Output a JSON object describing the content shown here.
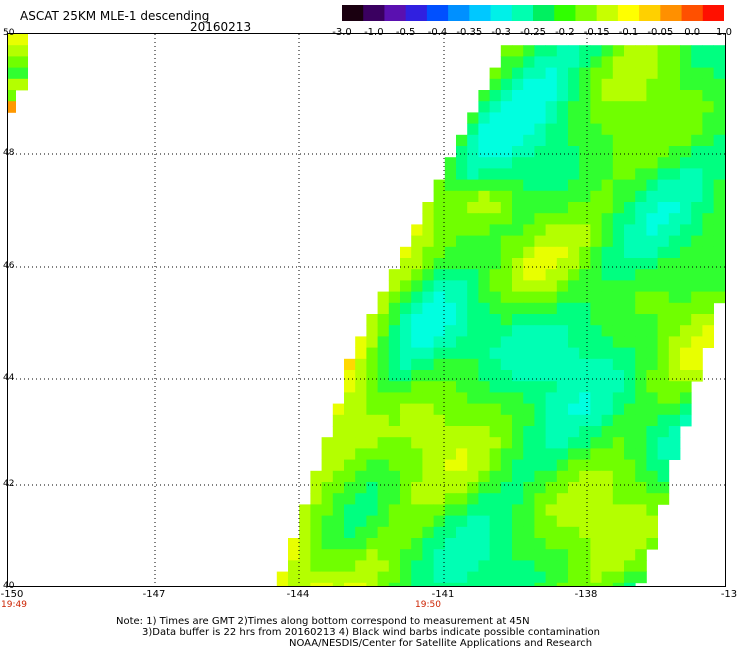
{
  "header": {
    "title": "ASCAT 25KM MLE-1 descending",
    "date": "20160213"
  },
  "colorbar": {
    "labels": [
      "-3.0",
      "-1.0",
      "-0.5",
      "-0.4",
      "-0.35",
      "-0.3",
      "-0.25",
      "-0.2",
      "-0.15",
      "-0.1",
      "-0.05",
      "0.0",
      "1.0"
    ],
    "colors": [
      "#1a0010",
      "#3a0060",
      "#5a10b0",
      "#3020e0",
      "#0050ff",
      "#0090ff",
      "#00c8ff",
      "#00f0e8",
      "#00ffb0",
      "#00f060",
      "#30ff00",
      "#80ff00",
      "#c8ff00",
      "#ffff00",
      "#ffd000",
      "#ff9000",
      "#ff5000",
      "#ff1000"
    ]
  },
  "axes": {
    "lat_labels": [
      "50",
      "48",
      "46",
      "44",
      "42",
      "40"
    ],
    "lon_labels": [
      "-150",
      "-147",
      "-144",
      "-141",
      "-138",
      "-13"
    ],
    "time_labels": [
      "19:49",
      "19:50"
    ]
  },
  "notes": {
    "line1": "Note: 1) Times are GMT 2)Times along bottom correspond to measurement at 45N",
    "line2": "3)Data buffer is 22 hrs from 20160213 4) Black wind barbs indicate possible contamination",
    "line3": "NOAA/NESDIS/Center for Satellite Applications and Research"
  }
}
